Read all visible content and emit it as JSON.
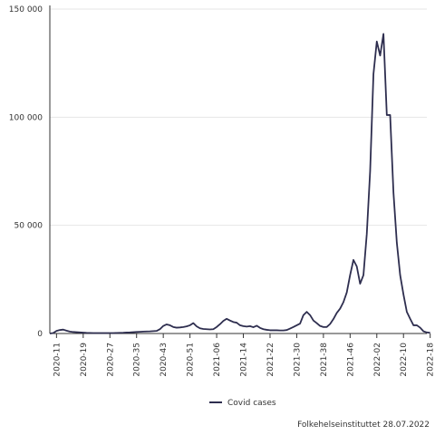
{
  "chart_data": {
    "type": "line",
    "x_ticks": [
      "2020-11",
      "2020-19",
      "2020-27",
      "2020-35",
      "2020-43",
      "2020-51",
      "2021-06",
      "2021-14",
      "2021-22",
      "2021-30",
      "2021-38",
      "2021-46",
      "2022-02",
      "2022-10",
      "2022-18"
    ],
    "y_ticks": [
      "0",
      "50 000",
      "100 000",
      "150 000"
    ],
    "ylim": [
      0,
      150000
    ],
    "grid": true,
    "legend_position": "bottom",
    "series": [
      {
        "name": "Covid cases",
        "color": "#2e2e4f",
        "points": [
          [
            "2020-09",
            0
          ],
          [
            "2020-10",
            200
          ],
          [
            "2020-11",
            1200
          ],
          [
            "2020-12",
            1600
          ],
          [
            "2020-13",
            1800
          ],
          [
            "2020-14",
            1300
          ],
          [
            "2020-15",
            900
          ],
          [
            "2020-16",
            700
          ],
          [
            "2020-17",
            600
          ],
          [
            "2020-18",
            500
          ],
          [
            "2020-19",
            400
          ],
          [
            "2020-20",
            300
          ],
          [
            "2020-21",
            250
          ],
          [
            "2020-22",
            200
          ],
          [
            "2020-23",
            200
          ],
          [
            "2020-24",
            200
          ],
          [
            "2020-25",
            200
          ],
          [
            "2020-26",
            200
          ],
          [
            "2020-27",
            200
          ],
          [
            "2020-28",
            200
          ],
          [
            "2020-29",
            250
          ],
          [
            "2020-30",
            300
          ],
          [
            "2020-31",
            350
          ],
          [
            "2020-32",
            450
          ],
          [
            "2020-33",
            500
          ],
          [
            "2020-34",
            600
          ],
          [
            "2020-35",
            700
          ],
          [
            "2020-36",
            800
          ],
          [
            "2020-37",
            900
          ],
          [
            "2020-38",
            950
          ],
          [
            "2020-39",
            1000
          ],
          [
            "2020-40",
            1100
          ],
          [
            "2020-41",
            1200
          ],
          [
            "2020-42",
            2000
          ],
          [
            "2020-43",
            3500
          ],
          [
            "2020-44",
            4200
          ],
          [
            "2020-45",
            3800
          ],
          [
            "2020-46",
            3000
          ],
          [
            "2020-47",
            2700
          ],
          [
            "2020-48",
            2800
          ],
          [
            "2020-49",
            3000
          ],
          [
            "2020-50",
            3300
          ],
          [
            "2020-51",
            3800
          ],
          [
            "2020-52",
            4800
          ],
          [
            "2020-53",
            3300
          ],
          [
            "2021-01",
            2400
          ],
          [
            "2021-02",
            2100
          ],
          [
            "2021-03",
            2000
          ],
          [
            "2021-04",
            1900
          ],
          [
            "2021-05",
            2000
          ],
          [
            "2021-06",
            3000
          ],
          [
            "2021-07",
            4300
          ],
          [
            "2021-08",
            5800
          ],
          [
            "2021-09",
            6800
          ],
          [
            "2021-10",
            6000
          ],
          [
            "2021-11",
            5300
          ],
          [
            "2021-12",
            5000
          ],
          [
            "2021-13",
            3800
          ],
          [
            "2021-14",
            3400
          ],
          [
            "2021-15",
            3200
          ],
          [
            "2021-16",
            3400
          ],
          [
            "2021-17",
            2900
          ],
          [
            "2021-18",
            3600
          ],
          [
            "2021-19",
            2600
          ],
          [
            "2021-20",
            2000
          ],
          [
            "2021-21",
            1700
          ],
          [
            "2021-22",
            1500
          ],
          [
            "2021-23",
            1500
          ],
          [
            "2021-24",
            1500
          ],
          [
            "2021-25",
            1400
          ],
          [
            "2021-26",
            1400
          ],
          [
            "2021-27",
            1600
          ],
          [
            "2021-28",
            2300
          ],
          [
            "2021-29",
            3000
          ],
          [
            "2021-30",
            3800
          ],
          [
            "2021-31",
            4600
          ],
          [
            "2021-32",
            8500
          ],
          [
            "2021-33",
            10000
          ],
          [
            "2021-34",
            8500
          ],
          [
            "2021-35",
            6000
          ],
          [
            "2021-36",
            4800
          ],
          [
            "2021-37",
            3500
          ],
          [
            "2021-38",
            3000
          ],
          [
            "2021-39",
            3000
          ],
          [
            "2021-40",
            4400
          ],
          [
            "2021-41",
            6700
          ],
          [
            "2021-42",
            9500
          ],
          [
            "2021-43",
            11500
          ],
          [
            "2021-44",
            14500
          ],
          [
            "2021-45",
            19000
          ],
          [
            "2021-46",
            27000
          ],
          [
            "2021-47",
            34000
          ],
          [
            "2021-48",
            31000
          ],
          [
            "2021-49",
            23000
          ],
          [
            "2021-50",
            27000
          ],
          [
            "2021-51",
            46000
          ],
          [
            "2021-52",
            75000
          ],
          [
            "2022-01",
            120000
          ],
          [
            "2022-02",
            135000
          ],
          [
            "2022-03",
            128500
          ],
          [
            "2022-04",
            138500
          ],
          [
            "2022-05",
            101000
          ],
          [
            "2022-06",
            101000
          ],
          [
            "2022-07",
            65000
          ],
          [
            "2022-08",
            42000
          ],
          [
            "2022-09",
            27000
          ],
          [
            "2022-10",
            18000
          ],
          [
            "2022-11",
            10000
          ],
          [
            "2022-12",
            6800
          ],
          [
            "2022-13",
            3800
          ],
          [
            "2022-14",
            3800
          ],
          [
            "2022-15",
            2700
          ],
          [
            "2022-16",
            1000
          ],
          [
            "2022-17",
            500
          ],
          [
            "2022-18",
            300
          ]
        ]
      }
    ],
    "source": "Folkehelseinstituttet 28.07.2022"
  }
}
